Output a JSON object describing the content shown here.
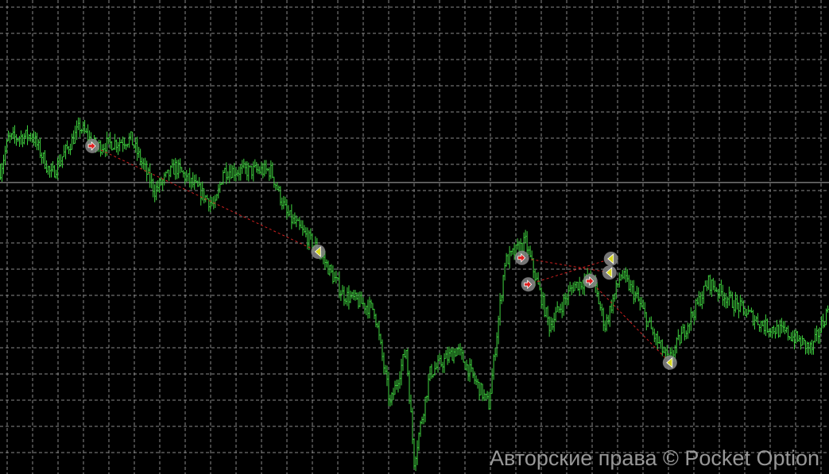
{
  "chart_data": {
    "type": "bar",
    "style": "ohlc-bars",
    "grid": true,
    "colors": {
      "background": "#000000",
      "bars": "#3fd33f",
      "grid": "#8a8a8a",
      "level_line": "#b0b0b0",
      "trade_line": "#d02020",
      "buy_marker": "#e02020",
      "sell_marker": "#d8d820"
    },
    "price_range": [
      0,
      100
    ],
    "bar_range": [
      0,
      521
    ],
    "price_path": [
      [
        0,
        64
      ],
      [
        5,
        70.7
      ],
      [
        20,
        71.5
      ],
      [
        32,
        63
      ],
      [
        50,
        73.2
      ],
      [
        60,
        69
      ],
      [
        82,
        70.7
      ],
      [
        97,
        59.8
      ],
      [
        110,
        64.8
      ],
      [
        135,
        56.4
      ],
      [
        140,
        64
      ],
      [
        170,
        64
      ],
      [
        180,
        54.8
      ],
      [
        200,
        47.2
      ],
      [
        215,
        38
      ],
      [
        235,
        34.7
      ],
      [
        245,
        14.6
      ],
      [
        255,
        26.3
      ],
      [
        260,
        2.8
      ],
      [
        270,
        21.3
      ],
      [
        287,
        26.3
      ],
      [
        307,
        14.6
      ],
      [
        317,
        44.7
      ],
      [
        330,
        48.9
      ],
      [
        345,
        31.3
      ],
      [
        360,
        39.7
      ],
      [
        372,
        41.4
      ],
      [
        380,
        31.3
      ],
      [
        390,
        42.2
      ],
      [
        400,
        37.2
      ],
      [
        410,
        29.6
      ],
      [
        420,
        23.8
      ],
      [
        445,
        40.5
      ],
      [
        460,
        36.3
      ],
      [
        480,
        31.3
      ],
      [
        495,
        29.6
      ],
      [
        510,
        26.3
      ],
      [
        521,
        35.5
      ]
    ],
    "level_line_price": 61.5,
    "trades": [
      {
        "type": "buy",
        "open": [
          58,
          69.2
        ],
        "close": [
          200,
          46.9
        ]
      },
      {
        "type": "buy",
        "open": [
          328,
          45.6
        ],
        "close": [
          383,
          42.5
        ]
      },
      {
        "type": "buy",
        "open": [
          332,
          40
        ],
        "close": [
          384,
          45.4
        ]
      },
      {
        "type": "buy",
        "open": [
          371,
          40.7
        ],
        "close": [
          421,
          23.5
        ]
      }
    ]
  },
  "watermark": "Авторские права © Pocket Option"
}
